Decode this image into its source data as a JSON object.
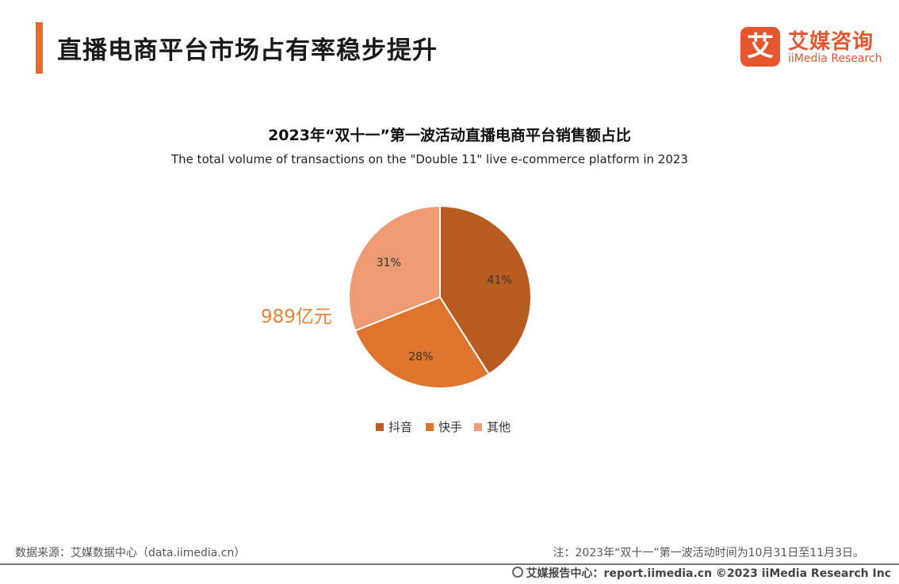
{
  "header": {
    "title": "直播电商平台市场占有率稳步提升",
    "logo_mark_char": "艾",
    "logo_cn": "艾媒咨询",
    "logo_en": "iiMedia Research"
  },
  "chart_data": {
    "type": "pie",
    "title": "2023年“双十一”第一波活动直播电商平台销售额占比",
    "subtitle": "The total volume of transactions on the \"Double 11\" live e-commerce platform in 2023",
    "total_label": "989亿元",
    "slices": [
      {
        "label": "抖音",
        "value": 41,
        "display": "41%",
        "color": "#b85c22"
      },
      {
        "label": "快手",
        "value": 28,
        "display": "28%",
        "color": "#df742c"
      },
      {
        "label": "其他",
        "value": 31,
        "display": "31%",
        "color": "#ef9b72"
      }
    ],
    "legend_position": "bottom"
  },
  "footer": {
    "source": "数据来源：艾媒数据中心（data.iimedia.cn）",
    "note": "注：2023年“双十一”第一波活动时间为10月31日至11月3日。",
    "credit": "艾媒报告中心：report.iimedia.cn ©2023 iiMedia Research Inc"
  }
}
